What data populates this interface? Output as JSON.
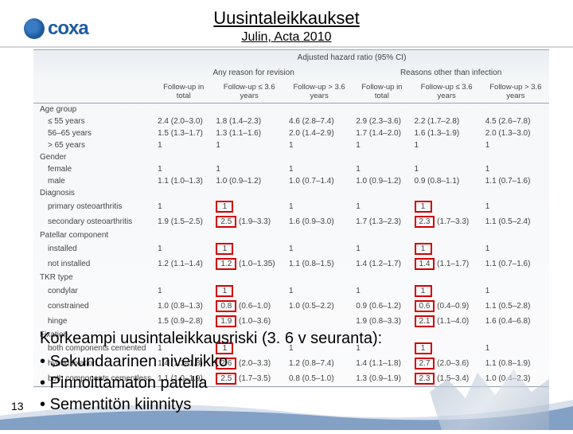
{
  "logo_text": "coxa",
  "title": "Uusintaleikkaukset",
  "subtitle": "Julin, Acta 2010",
  "page_number": "13",
  "table": {
    "top_header": "Adjusted hazard ratio (95% CI)",
    "group_headers": [
      "Any reason for revision",
      "Reasons other than infection"
    ],
    "col_headers": [
      "Follow-up in total",
      "Follow-up ≤ 3.6 years",
      "Follow-up > 3.6 years",
      "Follow-up in total",
      "Follow-up ≤ 3.6 years",
      "Follow-up > 3.6 years"
    ],
    "sections": [
      {
        "label": "Age group",
        "rows": [
          {
            "label": "≤ 55 years",
            "vals": [
              [
                "2.4 (2.0–3.0)"
              ],
              [
                "1.8 (1.4–2.3)"
              ],
              [
                "4.6 (2.8–7.4)"
              ],
              [
                "2.9 (2.3–3.6)"
              ],
              [
                "2.2 (1.7–2.8)"
              ],
              [
                "4.5 (2.6–7.8)"
              ]
            ]
          },
          {
            "label": "56–65 years",
            "vals": [
              [
                "1.5 (1.3–1.7)"
              ],
              [
                "1.3 (1.1–1.6)"
              ],
              [
                "2.0 (1.4–2.9)"
              ],
              [
                "1.7 (1.4–2.0)"
              ],
              [
                "1.6 (1.3–1.9)"
              ],
              [
                "2.0 (1.3–3.0)"
              ]
            ]
          },
          {
            "label": "> 65 years",
            "vals": [
              [
                "1"
              ],
              [
                "1"
              ],
              [
                "1"
              ],
              [
                "1"
              ],
              [
                "1"
              ],
              [
                "1"
              ]
            ]
          }
        ]
      },
      {
        "label": "Gender",
        "rows": [
          {
            "label": "female",
            "vals": [
              [
                "1"
              ],
              [
                "1"
              ],
              [
                "1"
              ],
              [
                "1"
              ],
              [
                "1"
              ],
              [
                "1"
              ]
            ]
          },
          {
            "label": "male",
            "vals": [
              [
                "1.1 (1.0–1.3)"
              ],
              [
                "1.0 (0.9–1.2)"
              ],
              [
                "1.0 (0.7–1.4)"
              ],
              [
                "1.0 (0.9–1.2)"
              ],
              [
                "0.9 (0.8–1.1)"
              ],
              [
                "1.1 (0.7–1.6)"
              ]
            ]
          }
        ]
      },
      {
        "label": "Diagnosis",
        "rows": [
          {
            "label": "primary osteoarthritis",
            "vals": [
              [
                "1"
              ],
              [
                "1",
                "hl"
              ],
              [
                "1"
              ],
              [
                "1"
              ],
              [
                "1",
                "hl"
              ],
              [
                "1"
              ]
            ]
          },
          {
            "label": "secondary osteoarthritis",
            "vals": [
              [
                "1.9 (1.5–2.5)"
              ],
              [
                "2.5",
                "hl",
                " (1.9–3.3)"
              ],
              [
                "1.6 (0.9–3.0)"
              ],
              [
                "1.7 (1.3–2.3)"
              ],
              [
                "2.3",
                "hl",
                " (1.7–3.3)"
              ],
              [
                "1.1 (0.5–2.4)"
              ]
            ]
          }
        ]
      },
      {
        "label": "Patellar component",
        "rows": [
          {
            "label": "installed",
            "vals": [
              [
                "1"
              ],
              [
                "1",
                "hl"
              ],
              [
                "1"
              ],
              [
                "1"
              ],
              [
                "1",
                "hl"
              ],
              [
                "1"
              ]
            ]
          },
          {
            "label": "not installed",
            "vals": [
              [
                "1.2 (1.1–1.4)"
              ],
              [
                "1.2",
                "hl",
                " (1.0–1.35)"
              ],
              [
                "1.1 (0.8–1.5)"
              ],
              [
                "1.4 (1.2–1.7)"
              ],
              [
                "1.4",
                "hl",
                " (1.1–1.7)"
              ],
              [
                "1.1 (0.7–1.6)"
              ]
            ]
          }
        ]
      },
      {
        "label": "TKR type",
        "rows": [
          {
            "label": "condylar",
            "vals": [
              [
                "1"
              ],
              [
                "1",
                "hl"
              ],
              [
                "1"
              ],
              [
                "1"
              ],
              [
                "1",
                "hl"
              ],
              [
                "1"
              ]
            ]
          },
          {
            "label": "constrained",
            "vals": [
              [
                "1.0 (0.8–1.3)"
              ],
              [
                "0.8",
                "hl",
                " (0.6–1.0)"
              ],
              [
                "1.0 (0.5–2.2)"
              ],
              [
                "0.9 (0.6–1.2)"
              ],
              [
                "0.6",
                "hl",
                " (0.4–0.9)"
              ],
              [
                "1.1 (0.5–2.8)"
              ]
            ]
          },
          {
            "label": "hinge",
            "vals": [
              [
                "1.5 (0.9–2.8)"
              ],
              [
                "1.9",
                "hl",
                " (1.0–3.6)"
              ],
              [
                ""
              ],
              [
                "1.9 (0.8–3.3)"
              ],
              [
                "2.1",
                "hl",
                " (1.1–4.0)"
              ],
              [
                "1.6 (0.4–6.8)"
              ]
            ]
          }
        ]
      },
      {
        "label": "Fixation",
        "rows": [
          {
            "label": "both components cemented",
            "vals": [
              [
                "1"
              ],
              [
                "1",
                "hl"
              ],
              [
                "1"
              ],
              [
                "1"
              ],
              [
                "1",
                "hl"
              ],
              [
                "1"
              ]
            ]
          },
          {
            "label": "hybrid fixation",
            "vals": [
              [
                "1.4 (1.1–1.8)"
              ],
              [
                "2.6",
                "hl",
                " (2.0–3.3)"
              ],
              [
                "1.2 (0.8–7.4)"
              ],
              [
                "1.4 (1.1–1.8)"
              ],
              [
                "2.7",
                "hl",
                " (2.0–3.6)"
              ],
              [
                "1.1 (0.8–1.9)"
              ]
            ]
          },
          {
            "label": "both components cementless",
            "vals": [
              [
                "1.1 (1.0–1.9)"
              ],
              [
                "2.5",
                "hl",
                " (1.7–3.5)"
              ],
              [
                "0.8 (0.5–1.0)"
              ],
              [
                "1.3 (0.9–1.9)"
              ],
              [
                "2.3",
                "hl",
                " (1.5–3.4)"
              ],
              [
                "1.0 (0.4–2.3)"
              ]
            ]
          }
        ]
      }
    ]
  },
  "footer": {
    "heading": "Korkeampi uusintaleikkausriski (3. 6 v seuranta):",
    "bullets": [
      "Sekundaarinen nivelrikko",
      "Pinnoittamaton patella",
      "Sementitön kiinnitys"
    ]
  }
}
